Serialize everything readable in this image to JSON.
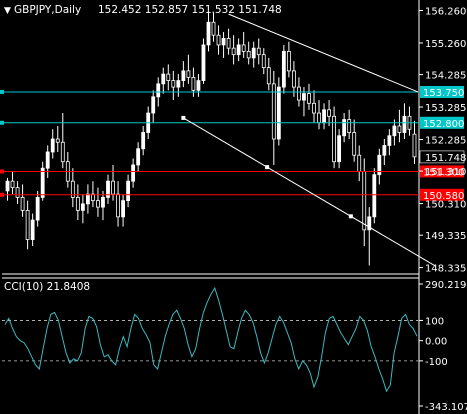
{
  "header": {
    "symbol_timeframe": "GBPJPY,Daily",
    "ohlc": "152.452 152.857 151.532 151.748"
  },
  "colors": {
    "background": "#000000",
    "axis": "#ffffff",
    "candle": "#ffffff",
    "cyan_line": "#00c8c8",
    "red_line": "#ff0000",
    "trend_line": "#ffffff",
    "cci": "#3cb8c0",
    "label_text": "#ffffff"
  },
  "chart_data": [
    {
      "type": "candlestick",
      "title": "GBPJPY,Daily",
      "ylim": [
        148.2,
        156.4
      ],
      "y_ticks": [
        "156.260",
        "155.260",
        "154.285",
        "153.285",
        "152.285",
        "151.310",
        "150.310",
        "149.335",
        "148.335"
      ],
      "last_price": "151.748",
      "horizontal_levels": [
        {
          "label": "153.750",
          "value": 153.75,
          "color": "cyan"
        },
        {
          "label": "152.800",
          "value": 152.8,
          "color": "cyan"
        },
        {
          "label": "151.300",
          "value": 151.3,
          "color": "red"
        },
        {
          "label": "150.580",
          "value": 150.58,
          "color": "red"
        }
      ],
      "trend_lines": [
        {
          "from": [
            44,
            156.15
          ],
          "to": [
            88,
            153.75
          ]
        },
        {
          "from": [
            35,
            152.95
          ],
          "to": [
            85,
            148.4
          ]
        }
      ],
      "candles": [
        [
          150.7,
          151.1,
          150.4,
          151.0
        ],
        [
          151.0,
          151.3,
          150.6,
          150.8
        ],
        [
          150.8,
          151.0,
          150.3,
          150.5
        ],
        [
          150.5,
          150.9,
          149.9,
          150.1
        ],
        [
          150.1,
          150.4,
          148.9,
          149.2
        ],
        [
          149.2,
          150.0,
          149.0,
          149.8
        ],
        [
          149.8,
          150.7,
          149.6,
          150.5
        ],
        [
          150.5,
          151.6,
          150.4,
          151.4
        ],
        [
          151.4,
          152.1,
          151.1,
          151.9
        ],
        [
          151.9,
          152.6,
          151.7,
          152.3
        ],
        [
          152.3,
          152.7,
          151.9,
          152.2
        ],
        [
          152.2,
          153.1,
          151.4,
          151.6
        ],
        [
          151.6,
          151.9,
          150.8,
          151.0
        ],
        [
          151.0,
          151.4,
          150.2,
          150.5
        ],
        [
          150.5,
          150.9,
          149.8,
          150.1
        ],
        [
          150.1,
          150.6,
          149.7,
          150.3
        ],
        [
          150.3,
          150.9,
          150.0,
          150.6
        ],
        [
          150.6,
          151.0,
          150.2,
          150.4
        ],
        [
          150.4,
          150.8,
          149.9,
          150.2
        ],
        [
          150.2,
          150.7,
          149.8,
          150.5
        ],
        [
          150.5,
          151.2,
          150.3,
          151.0
        ],
        [
          151.0,
          151.5,
          150.4,
          150.6
        ],
        [
          150.6,
          151.0,
          149.6,
          149.9
        ],
        [
          149.9,
          150.6,
          149.6,
          150.4
        ],
        [
          150.4,
          151.2,
          150.2,
          151.0
        ],
        [
          151.0,
          151.7,
          150.8,
          151.5
        ],
        [
          151.5,
          152.2,
          151.3,
          152.0
        ],
        [
          152.0,
          152.7,
          151.8,
          152.5
        ],
        [
          152.5,
          153.3,
          152.3,
          153.1
        ],
        [
          153.1,
          153.8,
          152.8,
          153.6
        ],
        [
          153.6,
          154.2,
          153.3,
          154.0
        ],
        [
          154.0,
          154.5,
          153.7,
          154.3
        ],
        [
          154.3,
          154.6,
          153.8,
          154.1
        ],
        [
          154.1,
          154.4,
          153.5,
          153.9
        ],
        [
          153.9,
          154.3,
          153.6,
          154.1
        ],
        [
          154.1,
          154.7,
          153.9,
          154.4
        ],
        [
          154.4,
          154.9,
          154.0,
          154.2
        ],
        [
          154.2,
          154.5,
          153.6,
          153.8
        ],
        [
          153.8,
          154.3,
          153.6,
          154.1
        ],
        [
          154.1,
          155.4,
          154.0,
          155.2
        ],
        [
          155.2,
          156.2,
          155.0,
          155.9
        ],
        [
          155.9,
          156.2,
          155.3,
          155.5
        ],
        [
          155.5,
          155.8,
          154.9,
          155.2
        ],
        [
          155.2,
          155.6,
          154.8,
          155.4
        ],
        [
          155.4,
          155.7,
          154.9,
          155.1
        ],
        [
          155.1,
          155.5,
          154.6,
          154.9
        ],
        [
          154.9,
          155.4,
          154.7,
          155.2
        ],
        [
          155.2,
          155.6,
          154.8,
          155.0
        ],
        [
          155.0,
          155.3,
          154.6,
          154.8
        ],
        [
          154.8,
          155.3,
          154.5,
          155.1
        ],
        [
          155.1,
          155.4,
          154.6,
          154.9
        ],
        [
          154.9,
          155.1,
          154.3,
          154.5
        ],
        [
          154.5,
          154.8,
          153.8,
          154.0
        ],
        [
          154.0,
          154.4,
          151.5,
          152.3
        ],
        [
          152.3,
          154.2,
          152.1,
          153.9
        ],
        [
          153.9,
          155.2,
          153.7,
          155.0
        ],
        [
          155.0,
          155.3,
          154.2,
          154.4
        ],
        [
          154.4,
          154.7,
          153.6,
          153.9
        ],
        [
          153.9,
          154.2,
          153.3,
          153.5
        ],
        [
          153.5,
          153.9,
          153.0,
          153.7
        ],
        [
          153.7,
          154.0,
          153.2,
          153.4
        ],
        [
          153.4,
          153.8,
          152.8,
          153.1
        ],
        [
          153.1,
          153.5,
          152.6,
          152.8
        ],
        [
          152.8,
          153.4,
          152.6,
          153.2
        ],
        [
          153.2,
          153.5,
          152.7,
          153.0
        ],
        [
          153.0,
          153.3,
          151.4,
          151.6
        ],
        [
          151.6,
          152.6,
          151.4,
          152.4
        ],
        [
          152.4,
          153.1,
          152.2,
          152.9
        ],
        [
          152.9,
          153.2,
          152.3,
          152.5
        ],
        [
          152.5,
          152.9,
          151.6,
          151.8
        ],
        [
          151.8,
          152.1,
          151.0,
          151.3
        ],
        [
          151.3,
          151.7,
          149.0,
          149.5
        ],
        [
          149.5,
          150.2,
          148.4,
          149.9
        ],
        [
          149.9,
          151.4,
          149.7,
          151.2
        ],
        [
          151.2,
          152.0,
          150.9,
          151.8
        ],
        [
          151.8,
          152.3,
          151.5,
          152.1
        ],
        [
          152.1,
          152.6,
          151.8,
          152.4
        ],
        [
          152.4,
          152.9,
          152.1,
          152.7
        ],
        [
          152.7,
          153.2,
          152.2,
          152.5
        ],
        [
          152.5,
          153.4,
          152.3,
          153.0
        ],
        [
          153.0,
          153.3,
          152.4,
          152.6
        ],
        [
          152.45,
          152.86,
          151.53,
          151.75
        ]
      ]
    },
    {
      "type": "line",
      "title": "CCI(10) 21.8408",
      "ylim": [
        -343.1078,
        290.2192
      ],
      "y_ticks": [
        "290.2192",
        "100",
        "0.00",
        "-100",
        "-343.1078"
      ],
      "levels": [
        100,
        -100
      ],
      "values": [
        80,
        110,
        60,
        20,
        0,
        -10,
        -40,
        -80,
        -120,
        -140,
        -40,
        60,
        130,
        140,
        100,
        20,
        -60,
        -110,
        -90,
        -100,
        -60,
        60,
        120,
        110,
        70,
        -20,
        -80,
        -70,
        -100,
        -120,
        -40,
        20,
        -30,
        60,
        130,
        110,
        60,
        30,
        -10,
        -120,
        -140,
        -60,
        20,
        80,
        130,
        150,
        110,
        60,
        -20,
        -80,
        -40,
        60,
        140,
        190,
        230,
        260,
        200,
        130,
        50,
        -30,
        -40,
        40,
        110,
        150,
        130,
        90,
        20,
        -60,
        -110,
        -60,
        10,
        80,
        120,
        90,
        40,
        -10,
        -90,
        -140,
        -100,
        -120,
        -160,
        -230,
        -180,
        -80,
        40,
        110,
        120,
        80,
        40,
        10,
        -20,
        20,
        60,
        120,
        100,
        50,
        -30,
        -80,
        -140,
        -190,
        -250,
        -220,
        -60,
        20,
        110,
        130,
        80,
        60,
        21.84
      ]
    }
  ]
}
